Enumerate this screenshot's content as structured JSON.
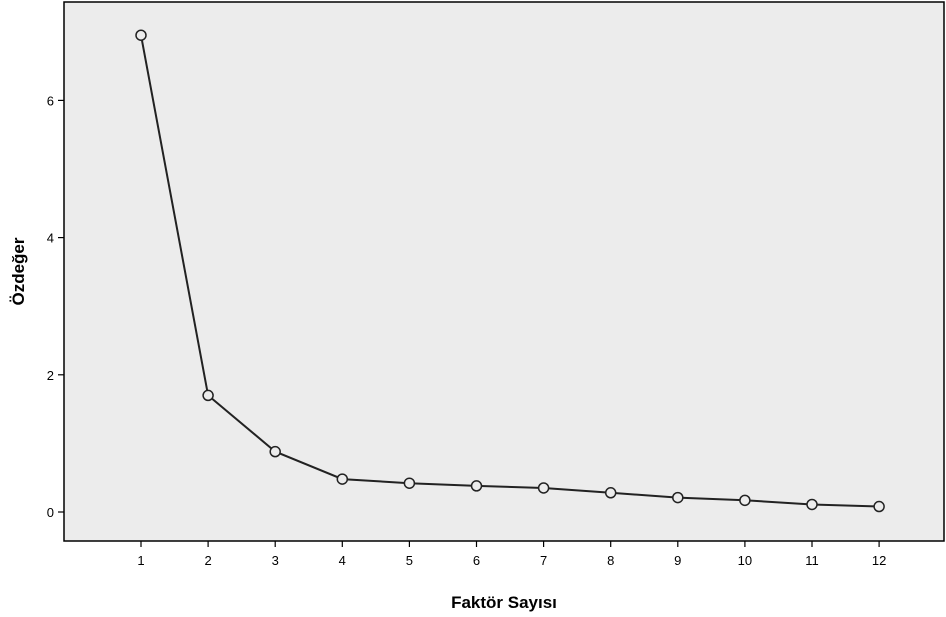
{
  "chart_data": {
    "type": "line",
    "xlabel": "Faktör Sayısı",
    "ylabel": "Özdeğer",
    "x": [
      1,
      2,
      3,
      4,
      5,
      6,
      7,
      8,
      9,
      10,
      11,
      12
    ],
    "series": [
      {
        "values": [
          6.95,
          1.7,
          0.88,
          0.48,
          0.42,
          0.38,
          0.35,
          0.28,
          0.21,
          0.17,
          0.11,
          0.08
        ]
      }
    ],
    "xticks": [
      "1",
      "2",
      "3",
      "4",
      "5",
      "6",
      "7",
      "8",
      "9",
      "10",
      "11",
      "12"
    ],
    "yticks": [
      "0",
      "2",
      "4",
      "6"
    ],
    "ylim": [
      -0.4,
      7.4
    ],
    "grid": false,
    "legend": "none",
    "colors": {
      "plot_background": "#ececec",
      "line": "#222222",
      "marker_fill": "#ececec"
    }
  }
}
